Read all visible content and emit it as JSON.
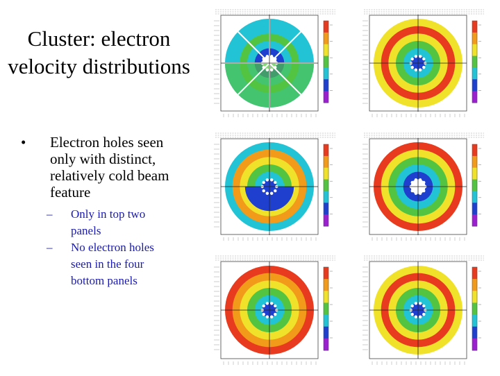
{
  "title": {
    "line1": "Cluster: electron",
    "line2": "velocity distributions"
  },
  "bullet": {
    "lines": [
      "Electron holes seen",
      "only with distinct,",
      "relatively cold beam",
      "feature"
    ]
  },
  "subbullets": [
    {
      "lines": [
        "Only in top two",
        "panels"
      ]
    },
    {
      "lines": [
        "No electron holes",
        "seen in the four",
        "bottom panels"
      ]
    }
  ],
  "markers": {
    "bullet": "•",
    "dash": "–"
  },
  "panels": [
    {
      "id": "top-left",
      "variant": "beam"
    },
    {
      "id": "top-right",
      "variant": "ring"
    },
    {
      "id": "middle-left",
      "variant": "split"
    },
    {
      "id": "middle-right",
      "variant": "cold"
    },
    {
      "id": "bottom-left",
      "variant": "hot"
    },
    {
      "id": "bottom-right",
      "variant": "ring"
    }
  ],
  "colors": {
    "red": "#e83a1e",
    "orange": "#f29a1a",
    "yellow": "#f0e22a",
    "green": "#53c442",
    "cyan": "#23c3d6",
    "blue": "#1f3fcf",
    "white": "#ffffff"
  }
}
